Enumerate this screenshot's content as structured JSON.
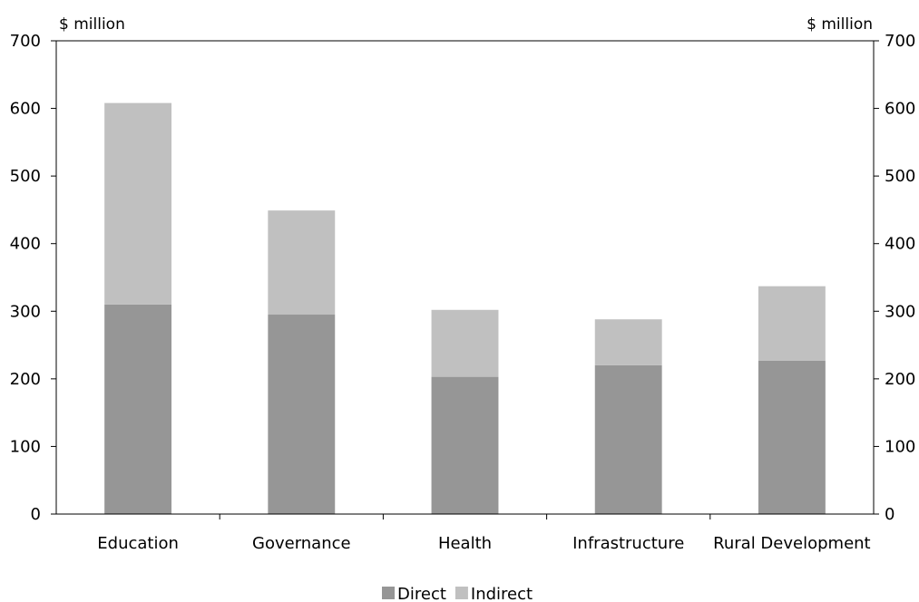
{
  "chart_data": {
    "type": "bar",
    "stacked": true,
    "categories": [
      "Education",
      "Governance",
      "Health",
      "Infrastructure",
      "Rural Development"
    ],
    "series": [
      {
        "name": "Direct",
        "values": [
          310,
          295,
          203,
          220,
          227
        ],
        "color": "#969696"
      },
      {
        "name": "Indirect",
        "values": [
          298,
          154,
          99,
          68,
          110
        ],
        "color": "#c0c0c0"
      }
    ],
    "left_unit": "$ million",
    "right_unit": "$ million",
    "ylim": [
      0,
      700
    ],
    "yticks": [
      0,
      100,
      200,
      300,
      400,
      500,
      600,
      700
    ],
    "grid": false,
    "legend_position": "bottom"
  }
}
